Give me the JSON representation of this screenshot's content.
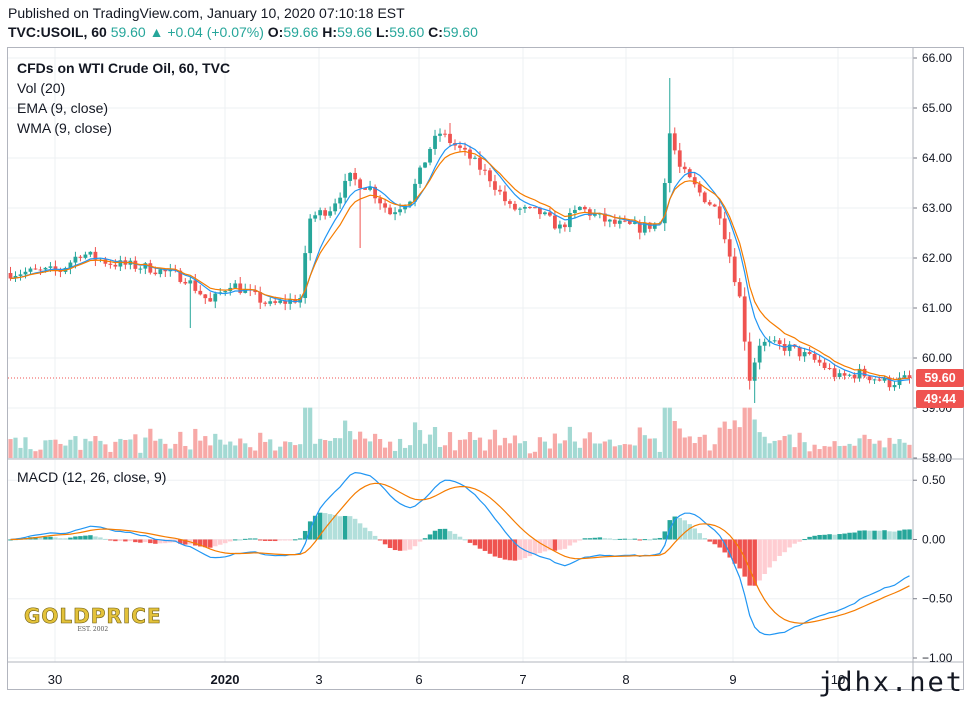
{
  "header": {
    "published": "Published on TradingView.com, January 10, 2020 07:10:18 EST",
    "symbol": "TVC:USOIL, 60",
    "last": "59.60",
    "arrow": "▲",
    "change": "+0.04 (+0.07%)",
    "o_label": "O:",
    "o": "59.66",
    "h_label": "H:",
    "h": "59.66",
    "l_label": "L:",
    "l": "59.60",
    "c_label": "C:",
    "c": "59.60"
  },
  "legend": {
    "title": "CFDs on WTI Crude Oil, 60, TVC",
    "vol": "Vol (20)",
    "ema": "EMA (9, close)",
    "wma": "WMA (9, close)",
    "macd": "MACD (12, 26, close, 9)"
  },
  "badges": {
    "price": "59.60",
    "countdown": "49:44"
  },
  "watermark": "jdhx.net",
  "logo": {
    "main": "GOLDPRICE",
    "sub": "EST. 2002"
  },
  "colors": {
    "up": "#26a69a",
    "down": "#ef5350",
    "ema": "#f57c00",
    "wma": "#2196f3",
    "vol_up": "#a3d9d3",
    "vol_down": "#f7a9a7",
    "macd_line": "#2196f3",
    "signal_line": "#f57c00"
  },
  "chart_data": [
    {
      "type": "candlestick",
      "title": "CFDs on WTI Crude Oil, 60, TVC",
      "ylim": [
        58.0,
        66.2
      ],
      "y_ticks": [
        "66.00",
        "65.00",
        "64.00",
        "63.00",
        "62.00",
        "61.00",
        "60.00",
        "59.00",
        "58.00"
      ],
      "x_ticks": [
        "30",
        "2020",
        "3",
        "6",
        "7",
        "8",
        "9",
        "10"
      ],
      "last_price": 59.6,
      "anchors": [
        [
          0,
          61.7
        ],
        [
          10,
          61.75
        ],
        [
          14,
          62.1
        ],
        [
          20,
          61.9
        ],
        [
          28,
          61.8
        ],
        [
          35,
          61.6
        ],
        [
          40,
          61.1
        ],
        [
          44,
          61.5
        ],
        [
          52,
          61.05
        ],
        [
          58,
          61.2
        ],
        [
          60,
          62.8
        ],
        [
          64,
          63.0
        ],
        [
          68,
          63.6
        ],
        [
          72,
          63.4
        ],
        [
          76,
          62.9
        ],
        [
          80,
          63.2
        ],
        [
          84,
          64.2
        ],
        [
          86,
          64.5
        ],
        [
          92,
          64.0
        ],
        [
          96,
          63.6
        ],
        [
          100,
          63.0
        ],
        [
          106,
          62.9
        ],
        [
          110,
          62.6
        ],
        [
          114,
          63.0
        ],
        [
          120,
          62.7
        ],
        [
          126,
          62.6
        ],
        [
          130,
          62.7
        ],
        [
          132,
          64.5
        ],
        [
          134,
          63.8
        ],
        [
          138,
          63.3
        ],
        [
          142,
          62.9
        ],
        [
          146,
          61.2
        ],
        [
          148,
          59.6
        ],
        [
          150,
          60.3
        ],
        [
          156,
          60.2
        ],
        [
          162,
          59.9
        ],
        [
          166,
          59.6
        ],
        [
          170,
          59.7
        ],
        [
          176,
          59.5
        ],
        [
          180,
          59.6
        ]
      ],
      "ema": {
        "name": "EMA (9, close)",
        "period": 9
      },
      "wma": {
        "name": "WMA (9, close)",
        "period": 9
      }
    },
    {
      "type": "bar",
      "title": "Vol (20)",
      "ylim": [
        0,
        100
      ]
    },
    {
      "type": "line",
      "title": "MACD (12, 26, close, 9)",
      "ylim": [
        -1.0,
        0.62
      ],
      "y_ticks": [
        "0.50",
        "0.00",
        "−0.50",
        "−1.00"
      ],
      "fast": 12,
      "slow": 26,
      "signal": 9
    }
  ]
}
